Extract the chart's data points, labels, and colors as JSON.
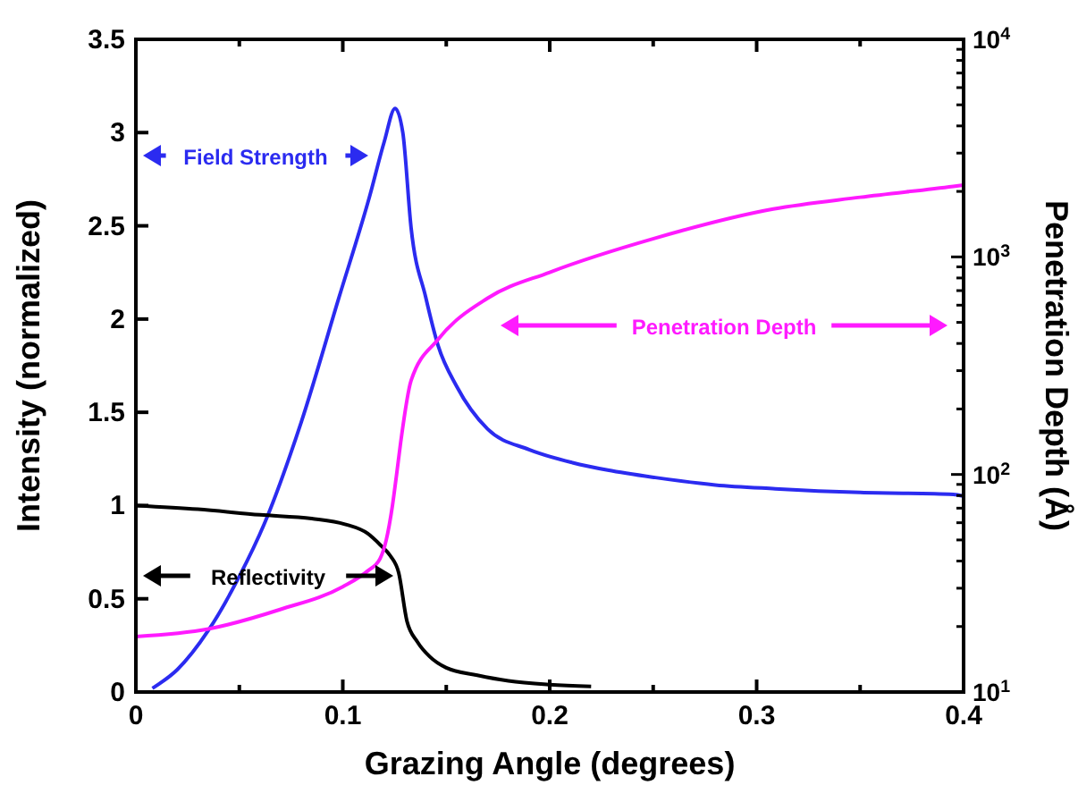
{
  "chart_data": {
    "type": "line",
    "xlabel": "Grazing Angle (degrees)",
    "ylabel": "Intensity (normalized)",
    "y2label": "Penetration Depth (Å)",
    "xlim": [
      0,
      0.4
    ],
    "xticks": [
      0,
      {
        "value": 0.05,
        "label": null
      },
      0.1,
      {
        "value": 0.15,
        "label": null
      },
      0.2,
      {
        "value": 0.25,
        "label": null
      },
      0.3,
      {
        "value": 0.35,
        "label": null
      },
      0.4
    ],
    "ylim": [
      0,
      3.5
    ],
    "yticks": [
      0,
      0.5,
      1,
      1.5,
      2,
      2.5,
      3,
      3.5
    ],
    "y2lim": [
      10,
      10000
    ],
    "y2ticks": [
      {
        "value": 10,
        "label": "10$^{1}$"
      },
      {
        "value": 20,
        "label": null
      },
      {
        "value": 30,
        "label": null
      },
      {
        "value": 40,
        "label": null
      },
      {
        "value": 50,
        "label": null
      },
      {
        "value": 60,
        "label": null
      },
      {
        "value": 70,
        "label": null
      },
      {
        "value": 80,
        "label": null
      },
      {
        "value": 90,
        "label": null
      },
      {
        "value": 100,
        "label": "10$^{2}$"
      },
      {
        "value": 200,
        "label": null
      },
      {
        "value": 300,
        "label": null
      },
      {
        "value": 400,
        "label": null
      },
      {
        "value": 500,
        "label": null
      },
      {
        "value": 600,
        "label": null
      },
      {
        "value": 700,
        "label": null
      },
      {
        "value": 800,
        "label": null
      },
      {
        "value": 900,
        "label": null
      },
      {
        "value": 1000,
        "label": "10$^{3}$"
      },
      {
        "value": 2000,
        "label": null
      },
      {
        "value": 3000,
        "label": null
      },
      {
        "value": 4000,
        "label": null
      },
      {
        "value": 5000,
        "label": null
      },
      {
        "value": 6000,
        "label": null
      },
      {
        "value": 7000,
        "label": null
      },
      {
        "value": 8000,
        "label": null
      },
      {
        "value": 9000,
        "label": null
      },
      {
        "value": 10000,
        "label": "10$^{4}$"
      }
    ],
    "log": "y2",
    "grid": false,
    "marker": "none",
    "line_style": "solid",
    "series": [
      {
        "color": "#2b2bf0",
        "x": [
          0.008,
          0.02,
          0.035,
          0.05,
          0.062,
          0.08,
          0.098,
          0.113,
          0.12,
          0.1253,
          0.129,
          0.133,
          0.14,
          0.146,
          0.155,
          0.17,
          0.19,
          0.211,
          0.228,
          0.251,
          0.28,
          0.309,
          0.35,
          0.395,
          0.4
        ],
        "values": [
          0.02,
          0.12,
          0.33,
          0.62,
          0.9,
          1.45,
          2.11,
          2.66,
          2.95,
          3.13,
          3.0,
          2.49,
          2.12,
          1.86,
          1.64,
          1.41,
          1.3,
          1.23,
          1.19,
          1.15,
          1.11,
          1.09,
          1.07,
          1.06,
          1.05
        ]
      },
      {
        "color": "#000000",
        "x": [
          0,
          0.03,
          0.06,
          0.085,
          0.101,
          0.112,
          0.118,
          0.123,
          0.127,
          0.131,
          0.136,
          0.142,
          0.15,
          0.165,
          0.18,
          0.2,
          0.22
        ],
        "values": [
          1,
          0.98,
          0.95,
          0.93,
          0.9,
          0.85,
          0.79,
          0.73,
          0.64,
          0.38,
          0.27,
          0.19,
          0.13,
          0.09,
          0.06,
          0.04,
          0.03
        ]
      },
      {
        "color": "#ff1aff",
        "axis": "y2",
        "x": [
          0,
          0.035,
          0.07,
          0.1,
          0.112,
          0.118,
          0.121,
          0.124,
          0.126,
          0.128,
          0.133,
          0.146,
          0.17,
          0.2,
          0.251,
          0.308,
          0.35,
          0.395,
          0.4
        ],
        "values": [
          18,
          19.5,
          24,
          30.5,
          36,
          41,
          50,
          72,
          100,
          141,
          270,
          417,
          646,
          850,
          1220,
          1660,
          1880,
          2110,
          2140
        ]
      }
    ],
    "annotations": [
      "Field Strength",
      "Reflectivity",
      "Penetration Depth"
    ]
  }
}
